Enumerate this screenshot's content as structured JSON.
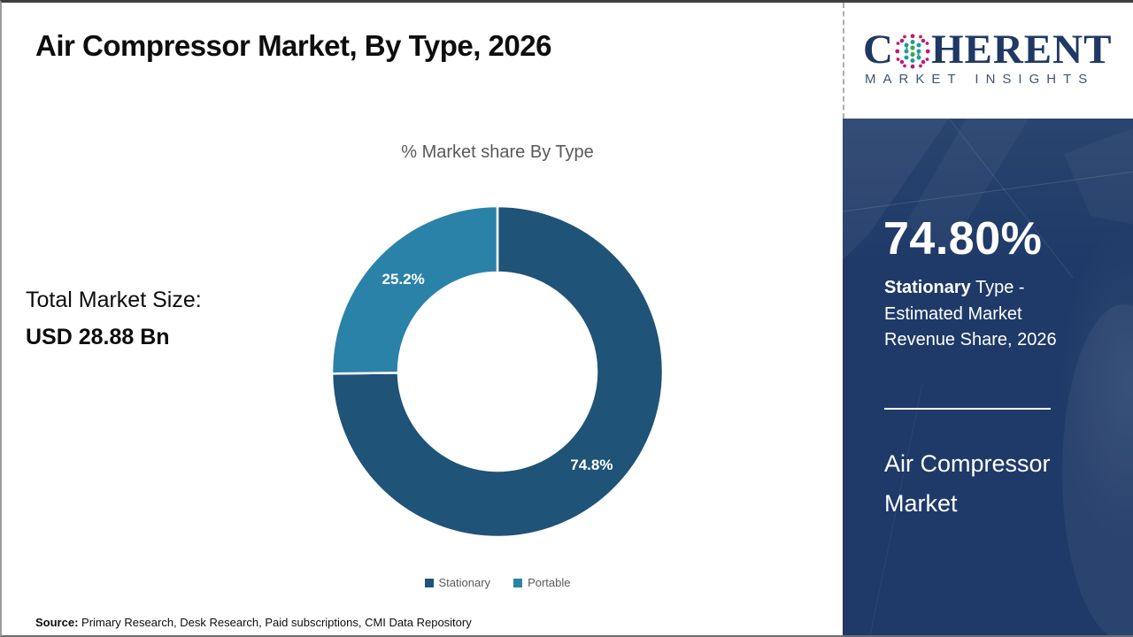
{
  "page": {
    "title": "Air Compressor Market, By Type, 2026",
    "total_market_size_label": "Total Market Size:",
    "total_market_size_value": "USD 28.88 Bn",
    "source_label": "Source:",
    "source_text": " Primary Research, Desk Research, Paid subscriptions, CMI Data Repository"
  },
  "chart_data": {
    "type": "pie",
    "subtype": "donut",
    "title": "% Market share By Type",
    "categories": [
      "Stationary",
      "Portable"
    ],
    "values": [
      74.8,
      25.2
    ],
    "slice_labels": [
      "74.8%",
      "25.2%"
    ],
    "colors": [
      "#1F5378",
      "#2B82A9"
    ],
    "label_color": "#FFFFFF",
    "legend_position": "bottom",
    "start_angle_deg": 0,
    "direction": "clockwise"
  },
  "logo": {
    "brand_part1": "C",
    "brand_part2": "HERENT",
    "brand_sub": "MARKET INSIGHTS",
    "globe_icon_colors": {
      "outer": "#BE1E6E",
      "mid": "#1E9AA5",
      "center": "#3FA648"
    },
    "brand_color": "#1F3864"
  },
  "panel": {
    "stat_value": "74.80%",
    "stat_desc_bold": "Stationary",
    "stat_desc_rest": " Type -",
    "stat_desc_line2": "Estimated Market",
    "stat_desc_line3": "Revenue Share, 2026",
    "panel_title_line1": "Air Compressor",
    "panel_title_line2": "Market",
    "background_color": "#1F3A68",
    "text_color": "#FFFFFF"
  }
}
